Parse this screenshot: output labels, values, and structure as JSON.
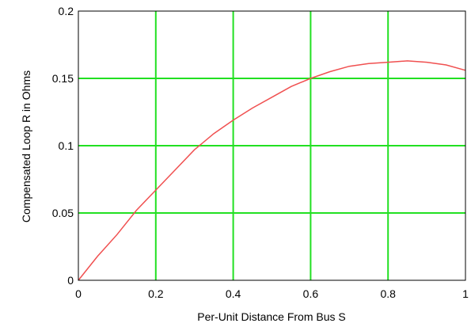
{
  "chart_data": {
    "type": "line",
    "title": "",
    "xlabel": "Per-Unit Distance From Bus S",
    "ylabel": "Compensated Loop R in Ohms",
    "xlim": [
      0,
      1
    ],
    "ylim": [
      0,
      0.2
    ],
    "grid": true,
    "x_ticks": [
      0,
      0.2,
      0.4,
      0.6,
      0.8,
      1
    ],
    "x_tick_labels": [
      "0",
      "0.2",
      "0.4",
      "0.6",
      "0.8",
      "1"
    ],
    "y_ticks": [
      0,
      0.05,
      0.1,
      0.15,
      0.2
    ],
    "y_tick_labels": [
      "0",
      "0.05",
      "0.1",
      "0.15",
      "0.2"
    ],
    "colors": {
      "series": "#f05050",
      "grid": "#22e022",
      "frame": "#000000"
    },
    "series": [
      {
        "x": [
          0,
          0.05,
          0.1,
          0.15,
          0.2,
          0.25,
          0.3,
          0.35,
          0.4,
          0.45,
          0.5,
          0.55,
          0.6,
          0.65,
          0.7,
          0.75,
          0.8,
          0.85,
          0.9,
          0.95,
          1.0
        ],
        "values": [
          0,
          0.018,
          0.034,
          0.052,
          0.067,
          0.082,
          0.097,
          0.109,
          0.119,
          0.128,
          0.136,
          0.144,
          0.15,
          0.155,
          0.159,
          0.161,
          0.162,
          0.163,
          0.162,
          0.16,
          0.156
        ]
      }
    ]
  }
}
